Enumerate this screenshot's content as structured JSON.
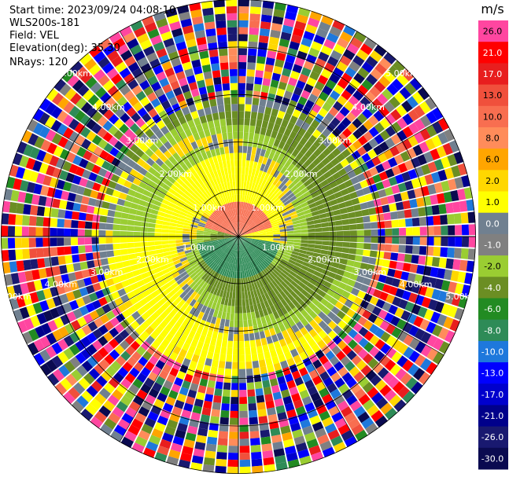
{
  "header": {
    "start_time": "Start time: 2023/09/24 04:08:10",
    "station": "WLS200s-181",
    "field": "Field: VEL",
    "elevation": "Elevation(deg): 35.30",
    "nrays": "NRays: 120"
  },
  "chart_data": {
    "type": "heatmap",
    "subtype": "ppi-polar",
    "field": "VEL",
    "units": "m/s",
    "range_max_km": 5.0,
    "nrays": 120,
    "range_ring_labels": [
      "1.00km",
      "2.00km",
      "3.00km",
      "4.00km",
      "5.00km"
    ],
    "range_ring_km": [
      1,
      2,
      3,
      4,
      5
    ],
    "grid_on": true,
    "azimuth_lines_deg": [
      0,
      30,
      60,
      90,
      120,
      150,
      180,
      210,
      240,
      270,
      300,
      330
    ],
    "colorbar": {
      "label": "m/s",
      "ticks": [
        "26.0",
        "21.0",
        "17.0",
        "13.0",
        "10.0",
        "8.0",
        "6.0",
        "2.0",
        "1.0",
        "0.0",
        "-1.0",
        "-2.0",
        "-4.0",
        "-6.0",
        "-8.0",
        "-10.0",
        "-13.0",
        "-17.0",
        "-21.0",
        "-26.0",
        "-30.0"
      ],
      "colors_top_to_bottom": [
        "#ff46a0",
        "#ff0000",
        "#e81e1e",
        "#f0503c",
        "#f86e50",
        "#ff8c5a",
        "#ffa500",
        "#ffd700",
        "#ffff00",
        "#708090",
        "#808080",
        "#9acd32",
        "#6b8e23",
        "#228b22",
        "#2e8b57",
        "#1e78dc",
        "#0000ff",
        "#0000cd",
        "#00008b",
        "#191970",
        "#0a0a50"
      ]
    },
    "field_description_km": {
      "inner_receding_core": {
        "color": "#f86e50",
        "sector": "north",
        "r_max": 0.75
      },
      "inner_approaching_core": {
        "color": "#2e8b57",
        "sector": "south",
        "r_max": 0.9
      },
      "low_speed_band": {
        "colors": [
          "#ffff00",
          "#ffd700",
          "#708090",
          "#9acd32",
          "#6b8e23"
        ],
        "r_min": 0.75,
        "r_max": 2.6
      },
      "noise_region": {
        "r_min": 3.0,
        "r_max": 5.0
      }
    }
  }
}
